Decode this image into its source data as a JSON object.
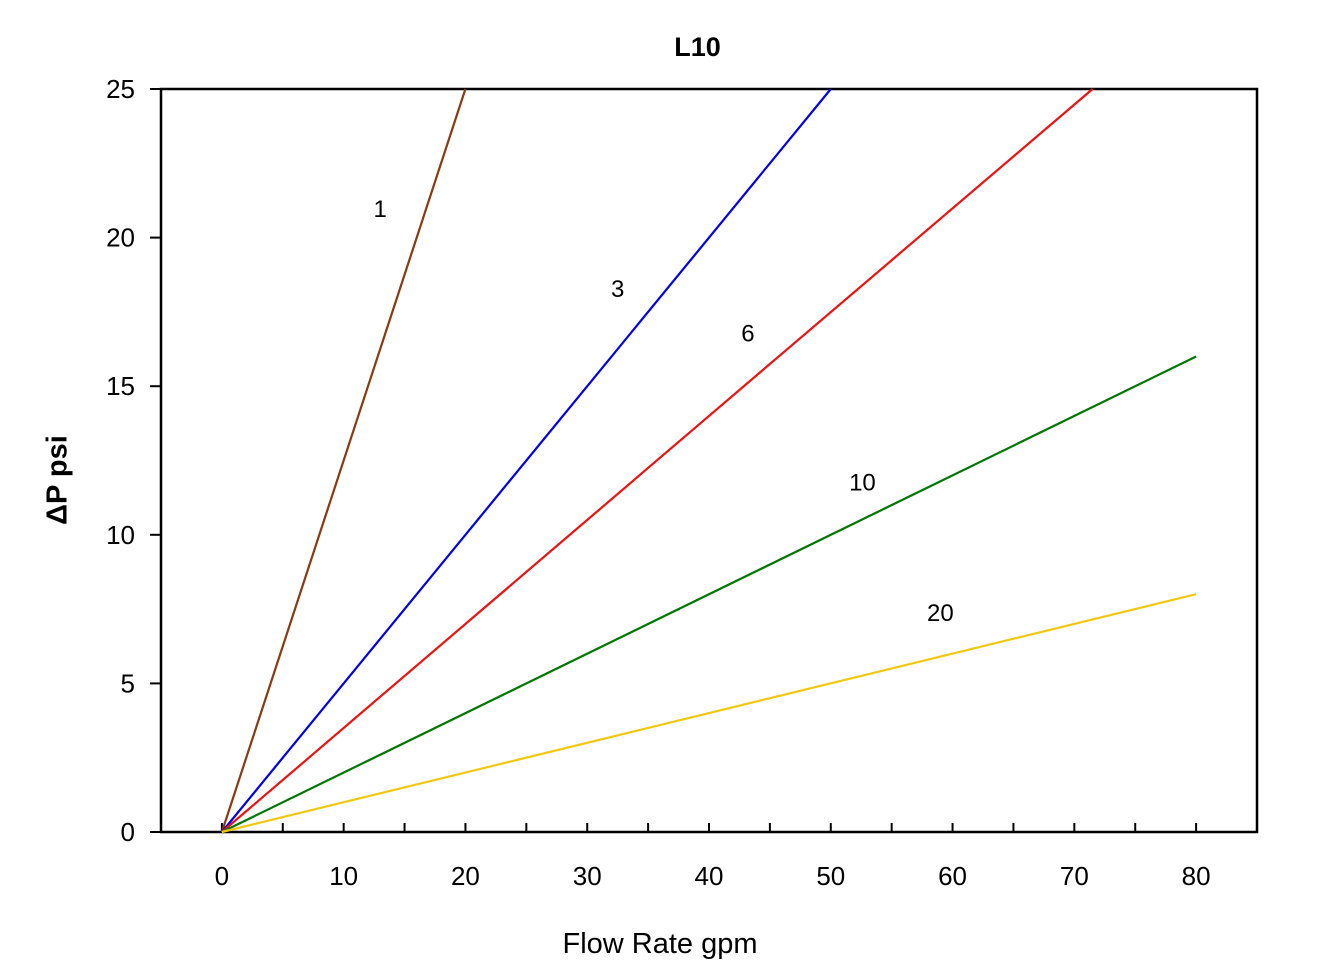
{
  "chart_data": {
    "type": "line",
    "title": "L10",
    "xlabel": "Flow Rate gpm",
    "ylabel": "ΔP psi",
    "xlim": [
      -5,
      85
    ],
    "ylim": [
      0,
      25
    ],
    "xticks": [
      0,
      10,
      20,
      30,
      40,
      50,
      60,
      70,
      80
    ],
    "yticks": [
      0,
      5,
      10,
      15,
      20,
      25
    ],
    "grid": false,
    "series": [
      {
        "name": "1",
        "color": "#8B3A0F",
        "x": [
          0,
          20
        ],
        "y": [
          0,
          25
        ],
        "label_at": [
          13,
          21
        ]
      },
      {
        "name": "3",
        "color": "#0000EE",
        "x": [
          0,
          50
        ],
        "y": [
          0,
          25
        ],
        "label_at": [
          32.5,
          18.3
        ]
      },
      {
        "name": "6",
        "color": "#EE1111",
        "x": [
          0,
          40,
          71.5
        ],
        "y": [
          0,
          14,
          25
        ],
        "label_at": [
          43.2,
          16.8
        ]
      },
      {
        "name": "10",
        "color": "#007700",
        "x": [
          0,
          80
        ],
        "y": [
          0,
          16
        ],
        "label_at": [
          52.6,
          11.8
        ]
      },
      {
        "name": "20",
        "color": "#F2C80F",
        "x": [
          0,
          80
        ],
        "y": [
          0,
          8
        ],
        "label_at": [
          59,
          7.4
        ]
      }
    ]
  }
}
